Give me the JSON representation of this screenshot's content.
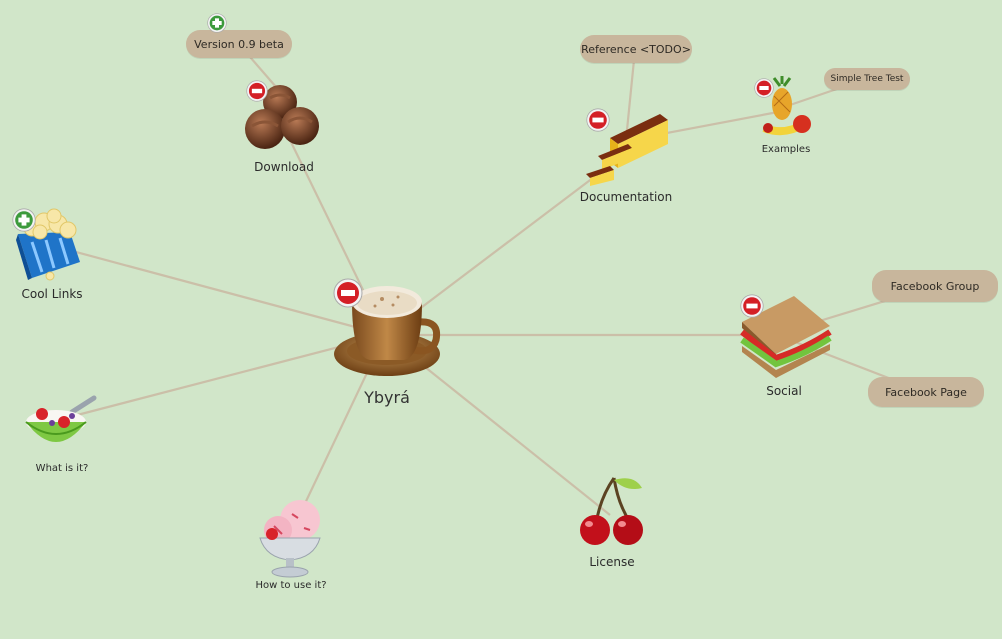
{
  "app": {
    "background": "#d1e6c9",
    "edge_color": "#c9bfa7",
    "pill_color": "#c8b69c"
  },
  "center": {
    "label": "Ybyrá",
    "icon": "coffee-cup-icon"
  },
  "nodes": {
    "download": {
      "label": "Download",
      "icon": "chocolates-icon",
      "toggle": "collapse"
    },
    "documentation": {
      "label": "Documentation",
      "icon": "cake-slice-icon",
      "toggle": "collapse"
    },
    "examples": {
      "label": "Examples",
      "icon": "fruit-basket-icon",
      "toggle": "collapse"
    },
    "cool_links": {
      "label": "Cool Links",
      "icon": "popcorn-icon",
      "toggle": "expand"
    },
    "what_is_it": {
      "label": "What is it?",
      "icon": "yogurt-bowl-icon"
    },
    "how_to_use": {
      "label": "How to use it?",
      "icon": "ice-cream-cup-icon"
    },
    "license": {
      "label": "License",
      "icon": "cherries-icon"
    },
    "social": {
      "label": "Social",
      "icon": "sandwich-icon",
      "toggle": "collapse"
    }
  },
  "pills": {
    "version": {
      "label": "Version 0.9 beta",
      "toggle": "expand"
    },
    "reference": {
      "label": "Reference <TODO>"
    },
    "simple_tree": {
      "label": "Simple Tree Test"
    },
    "fb_group": {
      "label": "Facebook Group"
    },
    "fb_page": {
      "label": "Facebook Page"
    }
  }
}
